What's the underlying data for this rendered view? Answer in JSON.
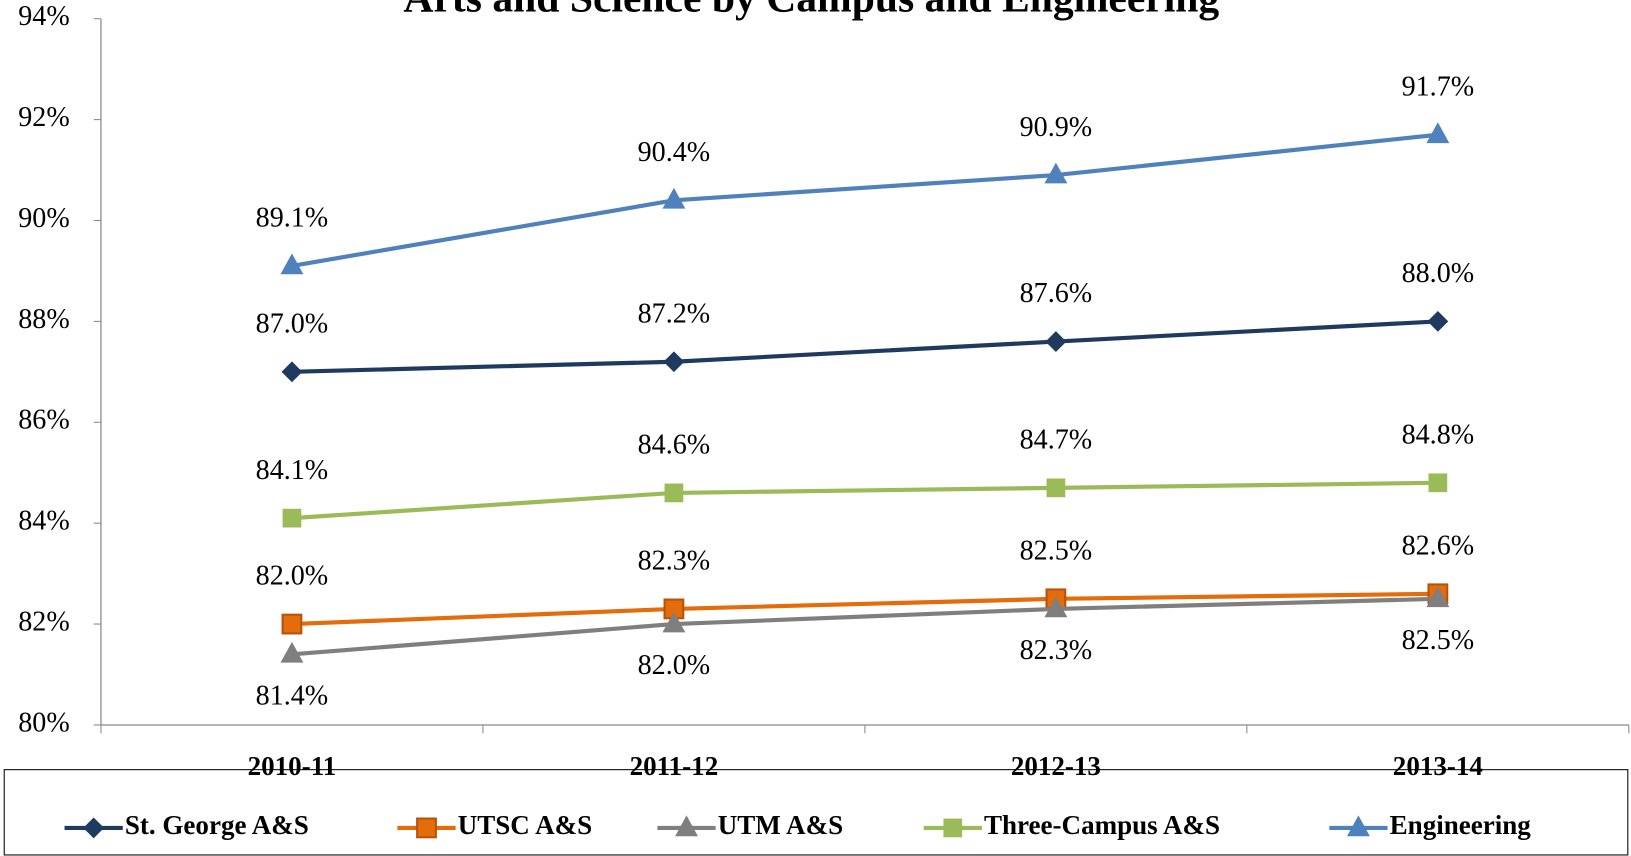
{
  "chart_data": {
    "type": "line",
    "title": "Arts and Science by Campus and Engineering",
    "categories": [
      "2010-11",
      "2011-12",
      "2012-13",
      "2013-14"
    ],
    "ylim": [
      80,
      94
    ],
    "yticks": [
      {
        "value": 80,
        "label": "80%"
      },
      {
        "value": 82,
        "label": "82%"
      },
      {
        "value": 84,
        "label": "84%"
      },
      {
        "value": 86,
        "label": "86%"
      },
      {
        "value": 88,
        "label": "88%"
      },
      {
        "value": 90,
        "label": "90%"
      },
      {
        "value": 92,
        "label": "92%"
      },
      {
        "value": 94,
        "label": "94%"
      }
    ],
    "legend": "bottom",
    "series": [
      {
        "name": "St. George A&S",
        "color": "#1f3a5f",
        "marker": "diamond",
        "values": [
          87.0,
          87.2,
          87.6,
          88.0
        ],
        "value_labels": [
          "87.0%",
          "87.2%",
          "87.6%",
          "88.0%"
        ]
      },
      {
        "name": "UTSC A&S",
        "color": "#e46c0a",
        "marker": "square",
        "values": [
          82.0,
          82.3,
          82.5,
          82.6
        ],
        "value_labels": [
          "82.0%",
          "82.3%",
          "82.5%",
          "82.6%"
        ]
      },
      {
        "name": "UTM A&S",
        "color": "#7f7f7f",
        "marker": "triangle",
        "values": [
          81.4,
          82.0,
          82.3,
          82.5
        ],
        "value_labels": [
          "81.4%",
          "82.0%",
          "82.3%",
          "82.5%"
        ]
      },
      {
        "name": "Three-Campus A&S",
        "color": "#9bbb59",
        "marker": "square",
        "values": [
          84.1,
          84.6,
          84.7,
          84.8
        ],
        "value_labels": [
          "84.1%",
          "84.6%",
          "84.7%",
          "84.8%"
        ]
      },
      {
        "name": "Engineering",
        "color": "#4f81bd",
        "marker": "triangle",
        "values": [
          89.1,
          90.4,
          90.9,
          91.7
        ],
        "value_labels": [
          "89.1%",
          "90.4%",
          "90.9%",
          "91.7%"
        ]
      }
    ]
  }
}
